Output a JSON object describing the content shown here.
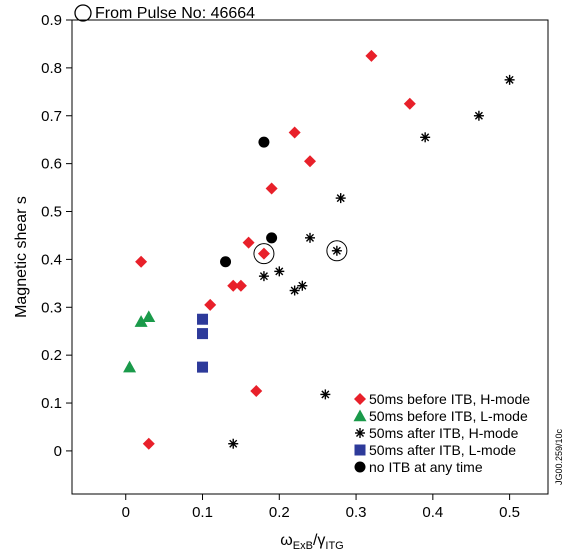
{
  "chart_data": {
    "type": "scatter",
    "title": "",
    "annotation": "From Pulse No: 46664",
    "side_code": "JG00.259/10c",
    "xlabel": {
      "main": "ω",
      "sub1": "ExB",
      "sep": "/γ",
      "sub2": "ITG"
    },
    "ylabel": "Magnetic shear s",
    "xlim": [
      -0.07,
      0.55
    ],
    "ylim": [
      -0.09,
      0.9
    ],
    "x_ticks": [
      {
        "v": 0,
        "label": "0"
      },
      {
        "v": 0.1,
        "label": "0.1"
      },
      {
        "v": 0.2,
        "label": "0.2"
      },
      {
        "v": 0.3,
        "label": "0.3"
      },
      {
        "v": 0.4,
        "label": "0.4"
      },
      {
        "v": 0.5,
        "label": "0.5"
      }
    ],
    "y_ticks": [
      {
        "v": 0,
        "label": "0"
      },
      {
        "v": 0.1,
        "label": "0.1"
      },
      {
        "v": 0.2,
        "label": "0.2"
      },
      {
        "v": 0.3,
        "label": "0.3"
      },
      {
        "v": 0.4,
        "label": "0.4"
      },
      {
        "v": 0.5,
        "label": "0.5"
      },
      {
        "v": 0.6,
        "label": "0.6"
      },
      {
        "v": 0.7,
        "label": "0.7"
      },
      {
        "v": 0.8,
        "label": "0.8"
      },
      {
        "v": 0.9,
        "label": "0.9"
      }
    ],
    "grid": false,
    "legend_position": "bottom-right",
    "series": [
      {
        "name": "50ms before ITB, H-mode",
        "marker": "diamond",
        "color": "#e8202a",
        "points": [
          [
            0.02,
            0.395
          ],
          [
            0.03,
            0.015
          ],
          [
            0.11,
            0.305
          ],
          [
            0.14,
            0.345
          ],
          [
            0.15,
            0.345
          ],
          [
            0.16,
            0.435
          ],
          [
            0.17,
            0.125
          ],
          [
            0.18,
            0.412
          ],
          [
            0.19,
            0.548
          ],
          [
            0.22,
            0.665
          ],
          [
            0.24,
            0.605
          ],
          [
            0.32,
            0.825
          ],
          [
            0.37,
            0.725
          ]
        ]
      },
      {
        "name": "50ms before ITB, L-mode",
        "marker": "triangle",
        "color": "#1a9a4a",
        "points": [
          [
            0.005,
            0.175
          ],
          [
            0.02,
            0.27
          ],
          [
            0.03,
            0.28
          ]
        ]
      },
      {
        "name": "50ms after ITB, H-mode",
        "marker": "asterisk",
        "color": "#000000",
        "points": [
          [
            0.14,
            0.015
          ],
          [
            0.18,
            0.365
          ],
          [
            0.2,
            0.375
          ],
          [
            0.22,
            0.335
          ],
          [
            0.23,
            0.345
          ],
          [
            0.24,
            0.445
          ],
          [
            0.26,
            0.118
          ],
          [
            0.275,
            0.418
          ],
          [
            0.28,
            0.528
          ],
          [
            0.39,
            0.655
          ],
          [
            0.46,
            0.7
          ],
          [
            0.5,
            0.775
          ]
        ]
      },
      {
        "name": "50ms after ITB, L-mode",
        "marker": "square",
        "color": "#2d3a9a",
        "points": [
          [
            0.1,
            0.175
          ],
          [
            0.1,
            0.245
          ],
          [
            0.1,
            0.275
          ]
        ]
      },
      {
        "name": "no ITB at any time",
        "marker": "circle",
        "color": "#000000",
        "points": [
          [
            0.13,
            0.395
          ],
          [
            0.18,
            0.645
          ],
          [
            0.19,
            0.445
          ]
        ]
      }
    ],
    "highlighted_points": [
      [
        0.18,
        0.412
      ],
      [
        0.275,
        0.418
      ]
    ]
  }
}
